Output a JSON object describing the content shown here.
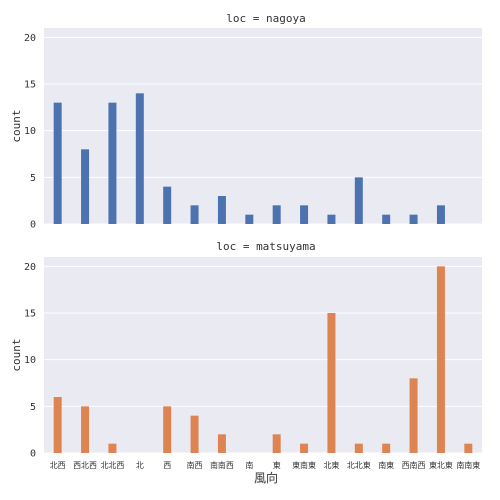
{
  "chart_data": {
    "type": "bar",
    "xlabel": "風向",
    "ylabel": "count",
    "ylim": [
      0,
      21
    ],
    "yticks": [
      0,
      5,
      10,
      15,
      20
    ],
    "grid": true,
    "categories": [
      "北西",
      "西北西",
      "北北西",
      "北",
      "西",
      "南西",
      "南南西",
      "南",
      "東",
      "東南東",
      "北東",
      "北北東",
      "南東",
      "西南西",
      "東北東",
      "南南東"
    ],
    "panels": [
      {
        "title": "loc = nagoya",
        "series": [
          {
            "values": [
              13,
              8,
              13,
              14,
              4,
              2,
              3,
              1,
              2,
              2,
              1,
              5,
              1,
              1,
              2,
              0
            ],
            "color": "#4c72b0"
          }
        ]
      },
      {
        "title": "loc = matsuyama",
        "series": [
          {
            "values": [
              6,
              5,
              1,
              0,
              5,
              4,
              2,
              0,
              2,
              1,
              15,
              1,
              1,
              8,
              20,
              1
            ],
            "color": "#dd8452"
          }
        ]
      }
    ]
  }
}
